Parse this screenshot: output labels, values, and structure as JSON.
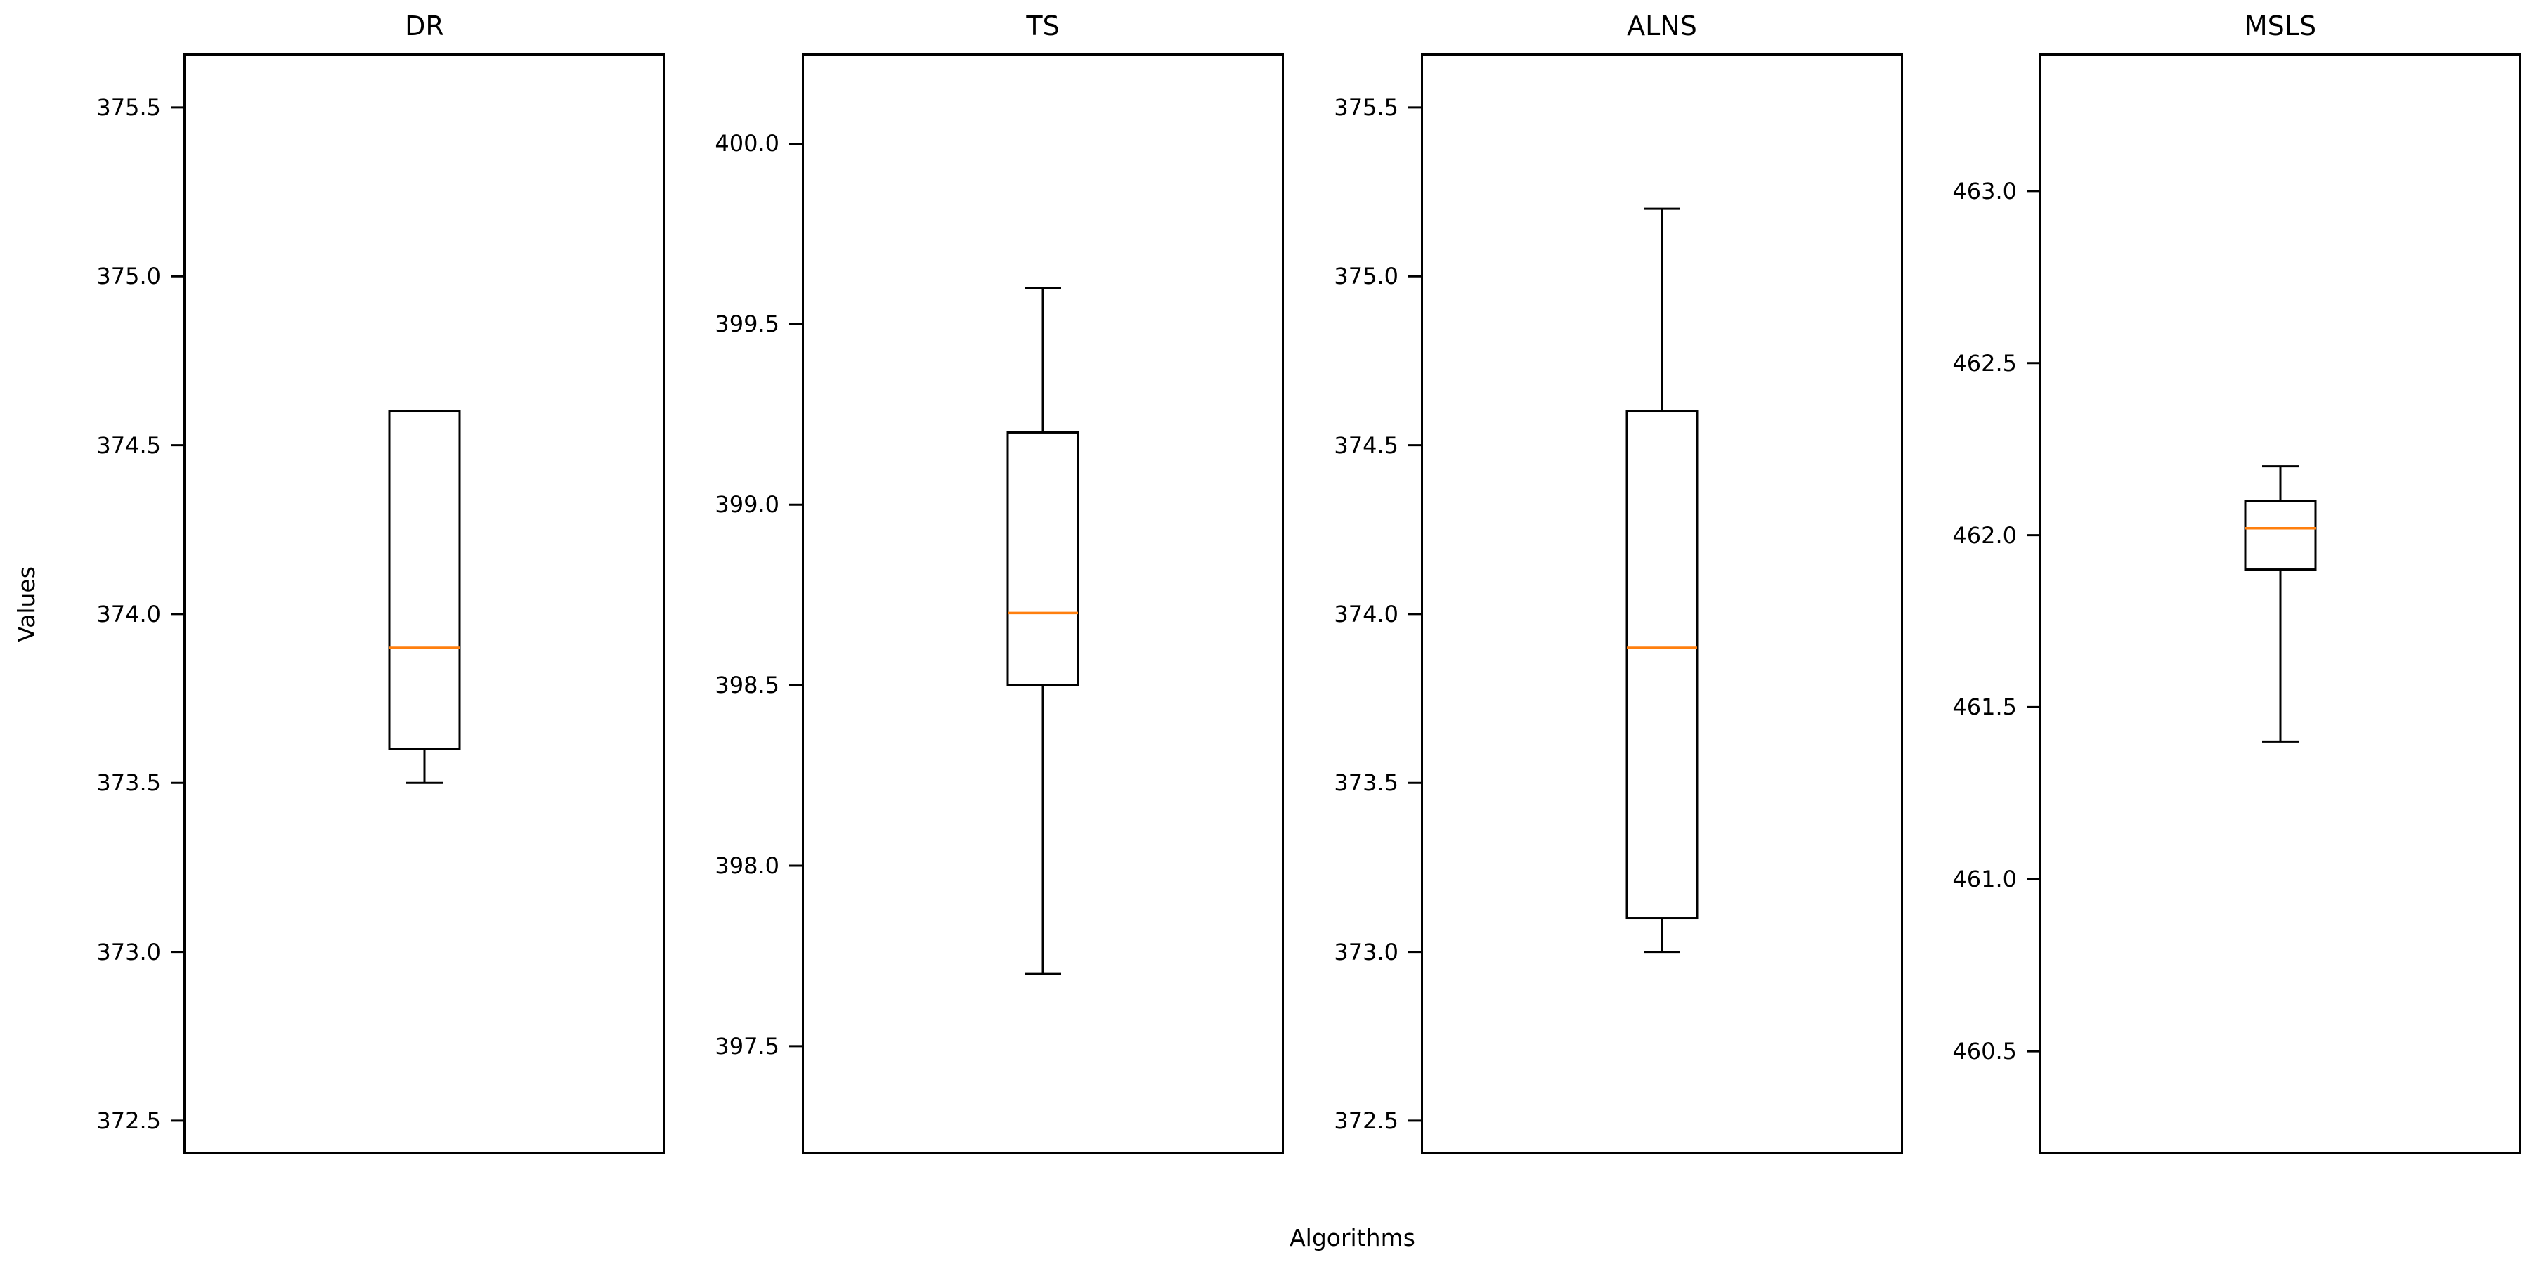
{
  "chart_data": {
    "type": "boxplot",
    "xlabel": "Algorithms",
    "ylabel": "Values",
    "grid": false,
    "legend": false,
    "background_color": "#ffffff",
    "box_line_color": "#000000",
    "median_color": "#ff7f0e",
    "charts": [
      {
        "title": "DR",
        "ylim": [
          372.4,
          375.66
        ],
        "yticks": [
          372.5,
          373.0,
          373.5,
          374.0,
          374.5,
          375.0,
          375.5
        ],
        "box": {
          "whisker_low": 373.5,
          "q1": 373.6,
          "median": 373.9,
          "q3": 374.6,
          "whisker_high": 374.6
        }
      },
      {
        "title": "TS",
        "ylim": [
          397.2,
          400.25
        ],
        "yticks": [
          397.5,
          398.0,
          398.5,
          399.0,
          399.5,
          400.0
        ],
        "box": {
          "whisker_low": 397.7,
          "q1": 398.5,
          "median": 398.7,
          "q3": 399.2,
          "whisker_high": 399.6
        }
      },
      {
        "title": "ALNS",
        "ylim": [
          372.4,
          375.66
        ],
        "yticks": [
          372.5,
          373.0,
          373.5,
          374.0,
          374.5,
          375.0,
          375.5
        ],
        "box": {
          "whisker_low": 373.0,
          "q1": 373.1,
          "median": 373.9,
          "q3": 374.6,
          "whisker_high": 375.2
        }
      },
      {
        "title": "MSLS",
        "ylim": [
          460.2,
          463.4
        ],
        "yticks": [
          460.5,
          461.0,
          461.5,
          462.0,
          462.5,
          463.0
        ],
        "box": {
          "whisker_low": 461.4,
          "q1": 461.9,
          "median": 462.02,
          "q3": 462.1,
          "whisker_high": 462.2
        }
      }
    ]
  }
}
